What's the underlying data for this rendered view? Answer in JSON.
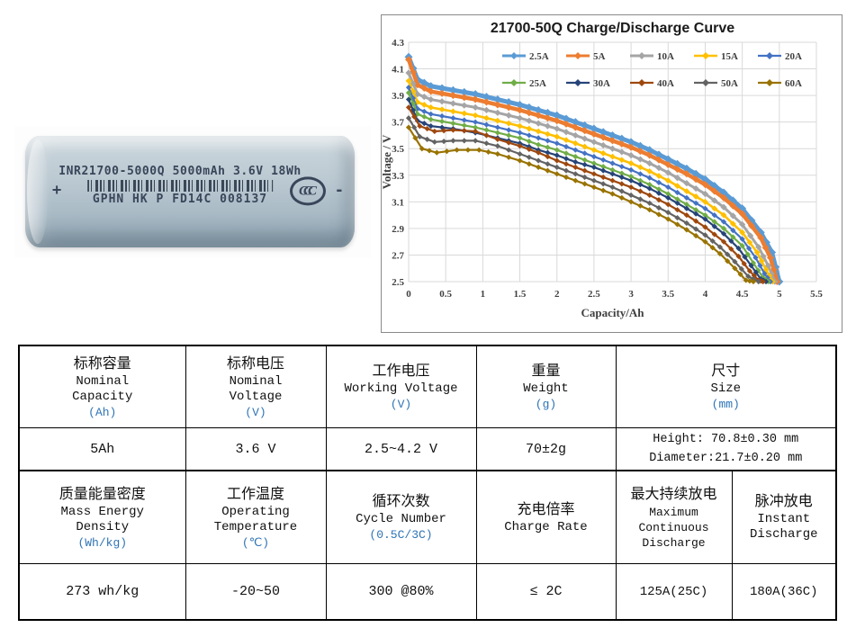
{
  "battery_photo": {
    "plus_label": "+",
    "minus_label": "-",
    "print_line1": "INR21700-5000Q 5000mAh 3.6V 18Wh",
    "print_line2": "GPHN HK P FD14C 008137",
    "certification_mark": "CCC"
  },
  "chart_data": {
    "type": "line",
    "title": "21700-50Q Charge/Discharge Curve",
    "xlabel": "Capacity/Ah",
    "ylabel": "Voltage / V",
    "xlim": [
      0,
      5.5
    ],
    "ylim": [
      2.5,
      4.3
    ],
    "xtick_step": 0.5,
    "ytick_step": 0.2,
    "grid": true,
    "legend_position": "top-inside",
    "legend_rows": 2,
    "series": [
      {
        "name": "2.5A",
        "color": "#5B9BD5",
        "lw": 5,
        "ms": 4.5,
        "points": [
          [
            0,
            4.19
          ],
          [
            0.12,
            4.02
          ],
          [
            0.3,
            3.97
          ],
          [
            0.6,
            3.94
          ],
          [
            0.9,
            3.91
          ],
          [
            1.2,
            3.87
          ],
          [
            1.5,
            3.83
          ],
          [
            1.75,
            3.79
          ],
          [
            2,
            3.75
          ],
          [
            2.25,
            3.7
          ],
          [
            2.5,
            3.65
          ],
          [
            2.75,
            3.6
          ],
          [
            3,
            3.55
          ],
          [
            3.25,
            3.49
          ],
          [
            3.5,
            3.42
          ],
          [
            3.75,
            3.35
          ],
          [
            4,
            3.27
          ],
          [
            4.25,
            3.17
          ],
          [
            4.5,
            3.05
          ],
          [
            4.75,
            2.87
          ],
          [
            4.9,
            2.72
          ],
          [
            5,
            2.5
          ]
        ]
      },
      {
        "name": "5A",
        "color": "#ED7D31",
        "lw": 4.5,
        "ms": 4,
        "points": [
          [
            0,
            4.17
          ],
          [
            0.12,
            3.98
          ],
          [
            0.3,
            3.93
          ],
          [
            0.6,
            3.9
          ],
          [
            0.9,
            3.87
          ],
          [
            1.2,
            3.83
          ],
          [
            1.5,
            3.79
          ],
          [
            1.75,
            3.75
          ],
          [
            2,
            3.71
          ],
          [
            2.25,
            3.66
          ],
          [
            2.5,
            3.61
          ],
          [
            2.75,
            3.56
          ],
          [
            3,
            3.51
          ],
          [
            3.25,
            3.45
          ],
          [
            3.5,
            3.38
          ],
          [
            3.75,
            3.31
          ],
          [
            4,
            3.23
          ],
          [
            4.25,
            3.13
          ],
          [
            4.5,
            3.01
          ],
          [
            4.75,
            2.83
          ],
          [
            4.88,
            2.68
          ],
          [
            4.97,
            2.5
          ]
        ]
      },
      {
        "name": "10A",
        "color": "#A5A5A5",
        "lw": 3,
        "ms": 3.6,
        "points": [
          [
            0,
            4.07
          ],
          [
            0.12,
            3.91
          ],
          [
            0.3,
            3.87
          ],
          [
            0.6,
            3.84
          ],
          [
            0.9,
            3.81
          ],
          [
            1.2,
            3.77
          ],
          [
            1.5,
            3.73
          ],
          [
            1.75,
            3.69
          ],
          [
            2,
            3.65
          ],
          [
            2.25,
            3.6
          ],
          [
            2.5,
            3.55
          ],
          [
            2.75,
            3.5
          ],
          [
            3,
            3.45
          ],
          [
            3.25,
            3.39
          ],
          [
            3.5,
            3.32
          ],
          [
            3.75,
            3.24
          ],
          [
            4,
            3.16
          ],
          [
            4.25,
            3.06
          ],
          [
            4.5,
            2.93
          ],
          [
            4.72,
            2.76
          ],
          [
            4.85,
            2.62
          ],
          [
            4.94,
            2.5
          ]
        ]
      },
      {
        "name": "15A",
        "color": "#FFC000",
        "lw": 2.6,
        "ms": 3.4,
        "points": [
          [
            0,
            4.01
          ],
          [
            0.12,
            3.85
          ],
          [
            0.3,
            3.81
          ],
          [
            0.6,
            3.78
          ],
          [
            0.9,
            3.75
          ],
          [
            1.2,
            3.71
          ],
          [
            1.5,
            3.67
          ],
          [
            1.75,
            3.63
          ],
          [
            2,
            3.59
          ],
          [
            2.25,
            3.54
          ],
          [
            2.5,
            3.49
          ],
          [
            2.75,
            3.44
          ],
          [
            3,
            3.39
          ],
          [
            3.25,
            3.33
          ],
          [
            3.5,
            3.26
          ],
          [
            3.75,
            3.18
          ],
          [
            4,
            3.1
          ],
          [
            4.25,
            3.0
          ],
          [
            4.5,
            2.87
          ],
          [
            4.7,
            2.72
          ],
          [
            4.82,
            2.59
          ],
          [
            4.91,
            2.5
          ]
        ]
      },
      {
        "name": "20A",
        "color": "#4472C4",
        "lw": 2.2,
        "ms": 3.1,
        "points": [
          [
            0,
            3.96
          ],
          [
            0.12,
            3.8
          ],
          [
            0.3,
            3.76
          ],
          [
            0.6,
            3.73
          ],
          [
            0.9,
            3.7
          ],
          [
            1.2,
            3.66
          ],
          [
            1.5,
            3.62
          ],
          [
            1.75,
            3.58
          ],
          [
            2,
            3.54
          ],
          [
            2.25,
            3.49
          ],
          [
            2.5,
            3.44
          ],
          [
            2.75,
            3.39
          ],
          [
            3,
            3.34
          ],
          [
            3.25,
            3.28
          ],
          [
            3.5,
            3.21
          ],
          [
            3.75,
            3.13
          ],
          [
            4,
            3.05
          ],
          [
            4.25,
            2.95
          ],
          [
            4.5,
            2.82
          ],
          [
            4.68,
            2.68
          ],
          [
            4.8,
            2.56
          ],
          [
            4.88,
            2.5
          ]
        ]
      },
      {
        "name": "25A",
        "color": "#70AD47",
        "lw": 2.2,
        "ms": 3.1,
        "points": [
          [
            0,
            3.92
          ],
          [
            0.12,
            3.76
          ],
          [
            0.3,
            3.72
          ],
          [
            0.6,
            3.69
          ],
          [
            0.9,
            3.66
          ],
          [
            1.2,
            3.62
          ],
          [
            1.5,
            3.58
          ],
          [
            1.75,
            3.53
          ],
          [
            2,
            3.49
          ],
          [
            2.25,
            3.44
          ],
          [
            2.5,
            3.39
          ],
          [
            2.75,
            3.34
          ],
          [
            3,
            3.29
          ],
          [
            3.25,
            3.23
          ],
          [
            3.5,
            3.16
          ],
          [
            3.75,
            3.08
          ],
          [
            4,
            3.0
          ],
          [
            4.25,
            2.9
          ],
          [
            4.5,
            2.77
          ],
          [
            4.65,
            2.64
          ],
          [
            4.78,
            2.53
          ],
          [
            4.85,
            2.5
          ]
        ]
      },
      {
        "name": "30A",
        "color": "#264478",
        "lw": 2.2,
        "ms": 3.1,
        "points": [
          [
            0,
            3.87
          ],
          [
            0.12,
            3.71
          ],
          [
            0.3,
            3.67
          ],
          [
            0.6,
            3.65
          ],
          [
            0.9,
            3.62
          ],
          [
            1.2,
            3.58
          ],
          [
            1.5,
            3.54
          ],
          [
            1.75,
            3.49
          ],
          [
            2,
            3.45
          ],
          [
            2.25,
            3.4
          ],
          [
            2.5,
            3.36
          ],
          [
            2.75,
            3.31
          ],
          [
            3,
            3.26
          ],
          [
            3.25,
            3.2
          ],
          [
            3.5,
            3.13
          ],
          [
            3.75,
            3.05
          ],
          [
            4,
            2.97
          ],
          [
            4.25,
            2.86
          ],
          [
            4.45,
            2.75
          ],
          [
            4.62,
            2.62
          ],
          [
            4.75,
            2.52
          ],
          [
            4.82,
            2.5
          ]
        ]
      },
      {
        "name": "40A",
        "color": "#9E480E",
        "lw": 2.2,
        "ms": 3.1,
        "points": [
          [
            0,
            3.81
          ],
          [
            0.15,
            3.67
          ],
          [
            0.35,
            3.63
          ],
          [
            0.6,
            3.64
          ],
          [
            0.9,
            3.63
          ],
          [
            1.2,
            3.57
          ],
          [
            1.5,
            3.52
          ],
          [
            1.75,
            3.47
          ],
          [
            2,
            3.41
          ],
          [
            2.25,
            3.36
          ],
          [
            2.5,
            3.31
          ],
          [
            2.75,
            3.26
          ],
          [
            3,
            3.21
          ],
          [
            3.25,
            3.15
          ],
          [
            3.5,
            3.08
          ],
          [
            3.75,
            3.0
          ],
          [
            4,
            2.91
          ],
          [
            4.25,
            2.8
          ],
          [
            4.45,
            2.69
          ],
          [
            4.6,
            2.58
          ],
          [
            4.72,
            2.51
          ],
          [
            4.78,
            2.5
          ]
        ]
      },
      {
        "name": "50A",
        "color": "#636363",
        "lw": 2.2,
        "ms": 3.1,
        "points": [
          [
            0,
            3.73
          ],
          [
            0.15,
            3.59
          ],
          [
            0.35,
            3.55
          ],
          [
            0.6,
            3.56
          ],
          [
            0.9,
            3.56
          ],
          [
            1.2,
            3.52
          ],
          [
            1.5,
            3.46
          ],
          [
            1.75,
            3.41
          ],
          [
            2,
            3.36
          ],
          [
            2.25,
            3.31
          ],
          [
            2.5,
            3.26
          ],
          [
            2.75,
            3.21
          ],
          [
            3,
            3.15
          ],
          [
            3.25,
            3.09
          ],
          [
            3.5,
            3.02
          ],
          [
            3.75,
            2.94
          ],
          [
            4,
            2.85
          ],
          [
            4.2,
            2.76
          ],
          [
            4.4,
            2.65
          ],
          [
            4.58,
            2.54
          ],
          [
            4.72,
            2.5
          ]
        ]
      },
      {
        "name": "60A",
        "color": "#997300",
        "lw": 2.2,
        "ms": 3.1,
        "points": [
          [
            0,
            3.66
          ],
          [
            0.18,
            3.5
          ],
          [
            0.38,
            3.47
          ],
          [
            0.65,
            3.49
          ],
          [
            0.95,
            3.49
          ],
          [
            1.2,
            3.46
          ],
          [
            1.5,
            3.41
          ],
          [
            1.75,
            3.36
          ],
          [
            2,
            3.31
          ],
          [
            2.25,
            3.26
          ],
          [
            2.5,
            3.21
          ],
          [
            2.75,
            3.16
          ],
          [
            3,
            3.1
          ],
          [
            3.25,
            3.04
          ],
          [
            3.5,
            2.97
          ],
          [
            3.75,
            2.89
          ],
          [
            4,
            2.8
          ],
          [
            4.2,
            2.71
          ],
          [
            4.4,
            2.6
          ],
          [
            4.55,
            2.51
          ],
          [
            4.65,
            2.5
          ]
        ]
      }
    ]
  },
  "spec_table": {
    "header1": [
      {
        "zh": "标称容量",
        "en": "Nominal\nCapacity",
        "unit": "(Ah)"
      },
      {
        "zh": "标称电压",
        "en": "Nominal\nVoltage",
        "unit": "(V)"
      },
      {
        "zh": "工作电压",
        "en": "Working Voltage",
        "unit": "(V)"
      },
      {
        "zh": "重量",
        "en": "Weight",
        "unit": "(g)"
      },
      {
        "zh": "尺寸",
        "en": "Size",
        "unit": "(mm)"
      }
    ],
    "values1": {
      "capacity": "5Ah",
      "voltage": "3.6 V",
      "working_voltage": "2.5~4.2 V",
      "weight": "70±2g",
      "size": "Height: 70.8±0.30 mm\nDiameter:21.7±0.20 mm"
    },
    "header2": [
      {
        "zh": "质量能量密度",
        "en": "Mass Energy\nDensity",
        "unit": "(Wh/kg)"
      },
      {
        "zh": "工作温度",
        "en": "Operating\nTemperature",
        "unit": "(℃)"
      },
      {
        "zh": "循环次数",
        "en": "Cycle Number",
        "unit": "(0.5C/3C)"
      },
      {
        "zh": "充电倍率",
        "en": "Charge Rate",
        "unit": ""
      },
      {
        "zh": "最大持续放电",
        "en": "Maximum\nContinuous\nDischarge",
        "unit": ""
      },
      {
        "zh": "脉冲放电",
        "en": "Instant\nDischarge",
        "unit": ""
      }
    ],
    "values2": {
      "energy_density": "273 wh/kg",
      "operating_temperature": "-20~50",
      "cycle_number": "300 @80%",
      "charge_rate": "≤ 2C",
      "max_continuous_discharge": "125A(25C)",
      "instant_discharge": "180A(36C)"
    }
  }
}
